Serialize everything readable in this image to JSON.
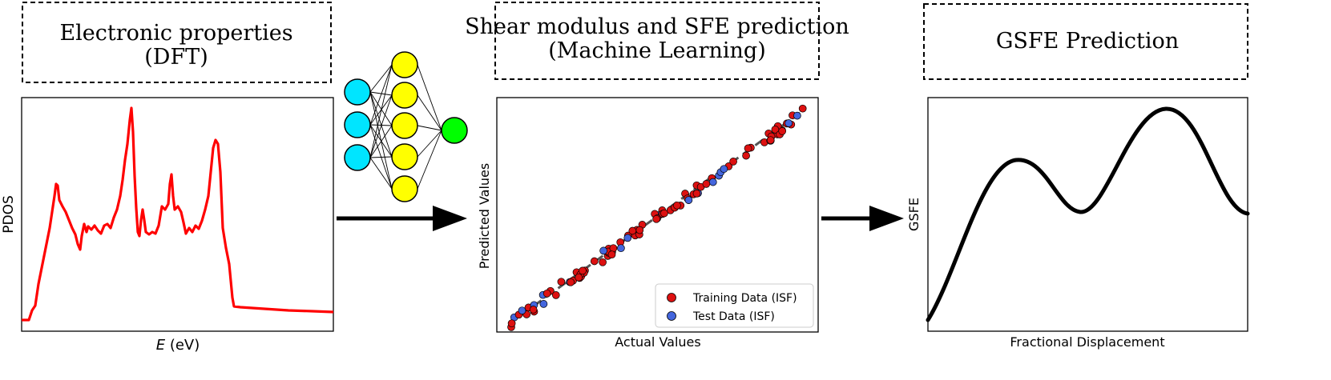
{
  "boxes": {
    "dft": {
      "line1": "Electronic properties",
      "line2": "(DFT)"
    },
    "ml": {
      "line1": "Shear modulus and SFE prediction",
      "line2": "(Machine Learning)"
    },
    "gsfe": {
      "line1": "GSFE Prediction"
    }
  },
  "pdos_plot": {
    "ylabel": "PDOS",
    "xlabel_italic": "E",
    "xlabel_rest": " (eV)",
    "color": "#ff0000"
  },
  "network": {
    "input_color": "#00e5ff",
    "hidden_color": "#ffff00",
    "output_color": "#00ff00",
    "layers": [
      3,
      5,
      1
    ]
  },
  "parity_plot": {
    "xlabel": "Actual Values",
    "ylabel": "Predicted Values",
    "legend": [
      {
        "label": "Training Data (ISF)",
        "color": "#dd1111"
      },
      {
        "label": "Test Data (ISF)",
        "color": "#4466dd"
      }
    ]
  },
  "gsfe_plot": {
    "xlabel": "Fractional Displacement",
    "ylabel": "GSFE",
    "color": "#000000"
  }
}
